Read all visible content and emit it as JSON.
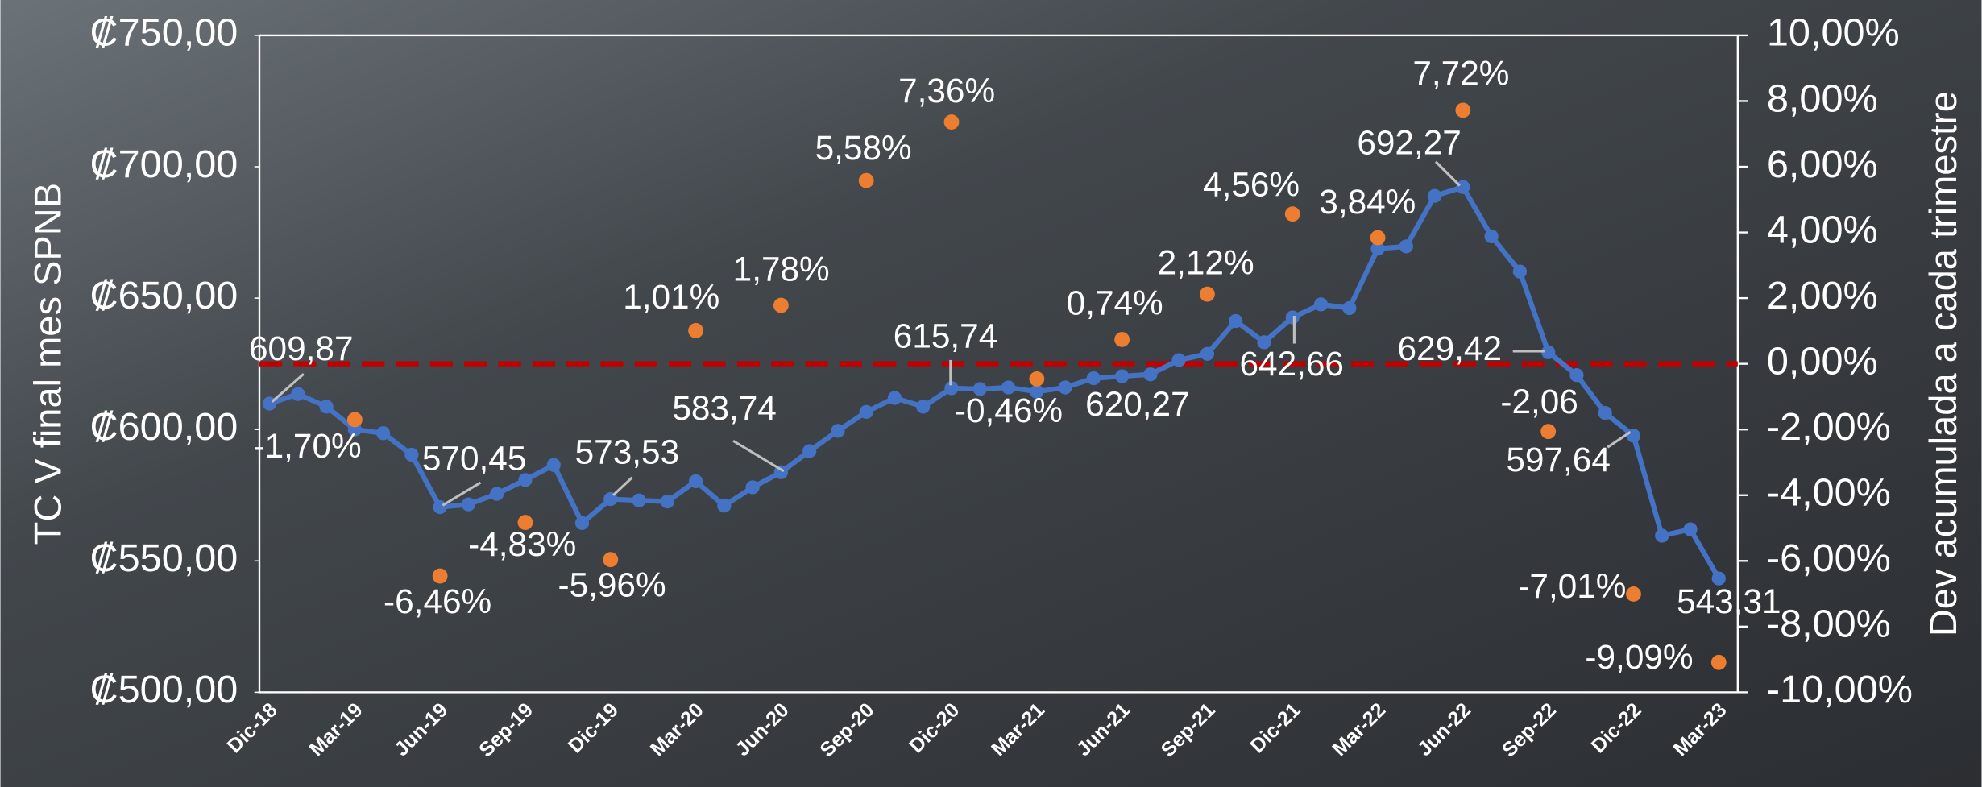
{
  "chart_data": {
    "type": "line",
    "y_axis_label": "TC V final mes SPNB",
    "y2_axis_label": "Dev acumulada a cada trimestre",
    "categories": [
      "Dic-18",
      null,
      null,
      "Mar-19",
      null,
      null,
      "Jun-19",
      null,
      null,
      "Sep-19",
      null,
      null,
      "Dic-19",
      null,
      null,
      "Mar-20",
      null,
      null,
      "Jun-20",
      null,
      null,
      "Sep-20",
      null,
      null,
      "Dic-20",
      null,
      null,
      "Mar-21",
      null,
      null,
      "Jun-21",
      null,
      null,
      "Sep-21",
      null,
      null,
      "Dic-21",
      null,
      null,
      "Mar-22",
      null,
      null,
      "Jun-22",
      null,
      null,
      "Sep-22",
      null,
      null,
      "Dic-22",
      null,
      null,
      "Mar-23"
    ],
    "series": [
      {
        "type": "line",
        "color": "#4472c4",
        "values": [
          609.87,
          613.5,
          608.7,
          600,
          598.6,
          590.4,
          570.45,
          571.5,
          575.5,
          580.8,
          586.5,
          564.4,
          573.53,
          573,
          572.6,
          580.3,
          571,
          578,
          583.74,
          591.8,
          599.5,
          606.7,
          612,
          608.7,
          615.74,
          615.4,
          616,
          614.4,
          616,
          619.5,
          620.27,
          621,
          626.4,
          628.8,
          641.3,
          633.2,
          642.66,
          647.6,
          646.2,
          668.8,
          669.7,
          688.9,
          692.27,
          673.5,
          660.1,
          629.42,
          620.7,
          606.3,
          597.64,
          559.6,
          562,
          543.31
        ],
        "value_labels": [
          "609,87",
          null,
          null,
          null,
          null,
          null,
          "570,45",
          null,
          null,
          null,
          null,
          null,
          "573,53",
          null,
          null,
          null,
          null,
          null,
          "583,74",
          null,
          null,
          null,
          null,
          null,
          "615,74",
          null,
          null,
          null,
          null,
          null,
          "620,27",
          null,
          null,
          null,
          null,
          null,
          "642,66",
          null,
          null,
          null,
          null,
          null,
          "692,27",
          null,
          null,
          "629,42",
          null,
          null,
          "597,64",
          null,
          null,
          "543,31"
        ]
      },
      {
        "type": "scatter",
        "color": "#ed7d31",
        "axis": "y2",
        "values": [
          null,
          null,
          null,
          -1.7,
          null,
          null,
          -6.46,
          null,
          null,
          -4.83,
          null,
          null,
          -5.96,
          null,
          null,
          1.01,
          null,
          null,
          1.78,
          null,
          null,
          5.58,
          null,
          null,
          7.36,
          null,
          null,
          -0.46,
          null,
          null,
          0.74,
          null,
          null,
          2.12,
          null,
          null,
          4.56,
          null,
          null,
          3.84,
          null,
          null,
          7.72,
          null,
          null,
          -2.06,
          null,
          null,
          -7.01,
          null,
          null,
          -9.09
        ],
        "value_labels": [
          null,
          null,
          null,
          "-1,70%",
          null,
          null,
          "-6,46%",
          null,
          null,
          "-4,83%",
          null,
          null,
          "-5,96%",
          null,
          null,
          "1,01%",
          null,
          null,
          "1,78%",
          null,
          null,
          "5,58%",
          null,
          null,
          "7,36%",
          null,
          null,
          "-0,46%",
          null,
          null,
          "0,74%",
          null,
          null,
          "2,12%",
          null,
          null,
          "4,56%",
          null,
          null,
          "3,84%",
          null,
          null,
          "7,72%",
          null,
          null,
          "-2,06",
          null,
          null,
          "-7,01%",
          null,
          null,
          "-9,09%"
        ]
      }
    ],
    "ylim": [
      500,
      750
    ],
    "yticks": [
      {
        "value": 500,
        "label": "₡500,00"
      },
      {
        "value": 550,
        "label": "₡550,00"
      },
      {
        "value": 600,
        "label": "₡600,00"
      },
      {
        "value": 650,
        "label": "₡650,00"
      },
      {
        "value": 700,
        "label": "₡700,00"
      },
      {
        "value": 750,
        "label": "₡750,00"
      }
    ],
    "y2lim": [
      -10,
      10
    ],
    "y2ticks": [
      {
        "value": -10,
        "label": "-10,00%"
      },
      {
        "value": -8,
        "label": "-8,00%"
      },
      {
        "value": -6,
        "label": "-6,00%"
      },
      {
        "value": -4,
        "label": "-4,00%"
      },
      {
        "value": -2,
        "label": "-2,00%"
      },
      {
        "value": 0,
        "label": "0,00%"
      },
      {
        "value": 2,
        "label": "2,00%"
      },
      {
        "value": 4,
        "label": "4,00%"
      },
      {
        "value": 6,
        "label": "6,00%"
      },
      {
        "value": 8,
        "label": "8,00%"
      },
      {
        "value": 10,
        "label": "10,00%"
      }
    ],
    "reference_line": {
      "axis": "y2",
      "value": 0,
      "color": "#c00000"
    },
    "grid": false
  }
}
